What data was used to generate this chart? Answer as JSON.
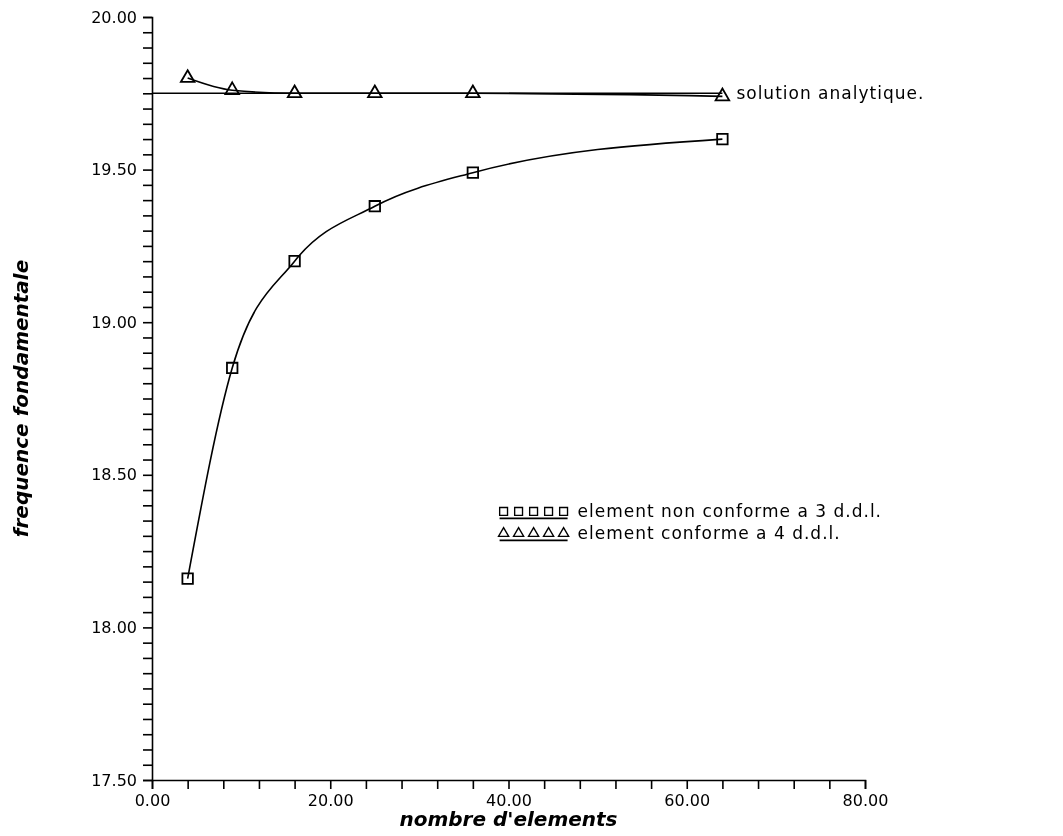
{
  "chart_data": {
    "type": "line",
    "xlabel": "nombre d'elements",
    "ylabel": "frequence fondamentale",
    "xlim": [
      0,
      80
    ],
    "ylim": [
      17.5,
      20
    ],
    "xticks": [
      {
        "value": 0,
        "label": "0.00"
      },
      {
        "value": 4,
        "label": null
      },
      {
        "value": 8,
        "label": null
      },
      {
        "value": 12,
        "label": null
      },
      {
        "value": 16,
        "label": null
      },
      {
        "value": 20,
        "label": "20.00"
      },
      {
        "value": 24,
        "label": null
      },
      {
        "value": 28,
        "label": null
      },
      {
        "value": 32,
        "label": null
      },
      {
        "value": 36,
        "label": null
      },
      {
        "value": 40,
        "label": "40.00"
      },
      {
        "value": 44,
        "label": null
      },
      {
        "value": 48,
        "label": null
      },
      {
        "value": 52,
        "label": null
      },
      {
        "value": 56,
        "label": null
      },
      {
        "value": 60,
        "label": "60.00"
      },
      {
        "value": 64,
        "label": null
      },
      {
        "value": 68,
        "label": null
      },
      {
        "value": 72,
        "label": null
      },
      {
        "value": 76,
        "label": null
      },
      {
        "value": 80,
        "label": "80.00"
      }
    ],
    "yticks": [
      {
        "value": 17.5,
        "label": "17.50"
      },
      {
        "value": 17.55,
        "label": null
      },
      {
        "value": 17.6,
        "label": null
      },
      {
        "value": 17.65,
        "label": null
      },
      {
        "value": 17.7,
        "label": null
      },
      {
        "value": 17.75,
        "label": null
      },
      {
        "value": 17.8,
        "label": null
      },
      {
        "value": 17.85,
        "label": null
      },
      {
        "value": 17.9,
        "label": null
      },
      {
        "value": 17.95,
        "label": null
      },
      {
        "value": 18,
        "label": "18.00"
      },
      {
        "value": 18.05,
        "label": null
      },
      {
        "value": 18.1,
        "label": null
      },
      {
        "value": 18.15,
        "label": null
      },
      {
        "value": 18.2,
        "label": null
      },
      {
        "value": 18.25,
        "label": null
      },
      {
        "value": 18.3,
        "label": null
      },
      {
        "value": 18.35,
        "label": null
      },
      {
        "value": 18.4,
        "label": null
      },
      {
        "value": 18.45,
        "label": null
      },
      {
        "value": 18.5,
        "label": "18.50"
      },
      {
        "value": 18.55,
        "label": null
      },
      {
        "value": 18.6,
        "label": null
      },
      {
        "value": 18.65,
        "label": null
      },
      {
        "value": 18.7,
        "label": null
      },
      {
        "value": 18.75,
        "label": null
      },
      {
        "value": 18.8,
        "label": null
      },
      {
        "value": 18.85,
        "label": null
      },
      {
        "value": 18.9,
        "label": null
      },
      {
        "value": 18.95,
        "label": null
      },
      {
        "value": 19,
        "label": "19.00"
      },
      {
        "value": 19.05,
        "label": null
      },
      {
        "value": 19.1,
        "label": null
      },
      {
        "value": 19.15,
        "label": null
      },
      {
        "value": 19.2,
        "label": null
      },
      {
        "value": 19.25,
        "label": null
      },
      {
        "value": 19.3,
        "label": null
      },
      {
        "value": 19.35,
        "label": null
      },
      {
        "value": 19.4,
        "label": null
      },
      {
        "value": 19.45,
        "label": null
      },
      {
        "value": 19.5,
        "label": "19.50"
      },
      {
        "value": 19.55,
        "label": null
      },
      {
        "value": 19.6,
        "label": null
      },
      {
        "value": 19.65,
        "label": null
      },
      {
        "value": 19.7,
        "label": null
      },
      {
        "value": 19.75,
        "label": null
      },
      {
        "value": 19.8,
        "label": null
      },
      {
        "value": 19.85,
        "label": null
      },
      {
        "value": 19.9,
        "label": null
      },
      {
        "value": 19.95,
        "label": null
      },
      {
        "value": 20,
        "label": "20.00"
      }
    ],
    "legend": "right",
    "grid": false,
    "series": [
      {
        "name": "element non conforme a 3 d.d.l.",
        "color": "#000000",
        "marker": "square",
        "x": [
          4,
          9,
          16,
          25,
          36,
          64
        ],
        "values": [
          18.16,
          18.85,
          19.2,
          19.38,
          19.49,
          19.6
        ]
      },
      {
        "name": "element conforme a 4 d.d.l.",
        "color": "#000000",
        "marker": "triangle",
        "x": [
          4,
          9,
          16,
          25,
          36,
          64
        ],
        "values": [
          19.8,
          19.76,
          19.75,
          19.75,
          19.75,
          19.74
        ]
      },
      {
        "name": "solution analytique.",
        "color": "#000000",
        "marker": "none",
        "x": [
          0,
          64
        ],
        "values": [
          19.75,
          19.75
        ]
      }
    ]
  }
}
